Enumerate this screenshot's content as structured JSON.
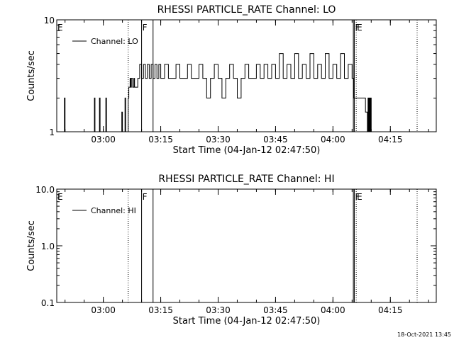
{
  "footer": {
    "timestamp": "18-Oct-2021 13:45"
  },
  "chart_data": [
    {
      "type": "line",
      "title": "RHESSI PARTICLE_RATE Channel: LO",
      "xlabel": "Start Time (04-Jan-12 02:47:50)",
      "ylabel": "Counts/sec",
      "xlim": [
        "02:47:50",
        "04:27:00"
      ],
      "ylim": [
        1,
        10
      ],
      "yscale": "log",
      "grid": false,
      "legend_position": "top-left",
      "x_tick_labels": [
        "03:00",
        "03:15",
        "03:30",
        "03:45",
        "04:00",
        "04:15"
      ],
      "y_tick_labels": [
        "1",
        "10"
      ],
      "markers": [
        {
          "label": "E",
          "time": "02:47:50",
          "style": "solid"
        },
        {
          "label": "",
          "time": "03:06:30",
          "style": "dotted"
        },
        {
          "label": "F",
          "time": "03:10:00",
          "style": "solid"
        },
        {
          "label": "",
          "time": "03:13:00",
          "style": "solid"
        },
        {
          "label": "",
          "time": "04:05:20",
          "style": "solid"
        },
        {
          "label": "F",
          "time": "04:05:35",
          "style": "solid"
        },
        {
          "label": "E",
          "time": "04:06:05",
          "style": "dotted"
        },
        {
          "label": "",
          "time": "04:22:00",
          "style": "dotted"
        }
      ],
      "series": [
        {
          "name": "Channel: LO",
          "x": [
            "02:49:40",
            "02:49:50",
            "02:50:00",
            "02:57:30",
            "02:57:40",
            "02:57:50",
            "02:58:50",
            "02:59:00",
            "02:59:10",
            "03:00:30",
            "03:00:40",
            "03:00:50",
            "03:04:40",
            "03:04:50",
            "03:05:00",
            "03:05:30",
            "03:05:40",
            "03:05:50",
            "03:06:30",
            "03:06:40",
            "03:07:00",
            "03:07:10",
            "03:07:20",
            "03:07:40",
            "03:08:00",
            "03:08:10",
            "03:09:00",
            "03:09:30",
            "03:10:00",
            "03:10:30",
            "03:11:00",
            "03:11:30",
            "03:12:00",
            "03:12:30",
            "03:13:00",
            "03:13:30",
            "03:14:00",
            "03:14:30",
            "03:15:00",
            "03:16:00",
            "03:17:00",
            "03:18:00",
            "03:19:00",
            "03:20:00",
            "03:21:00",
            "03:22:00",
            "03:23:00",
            "03:24:00",
            "03:25:00",
            "03:26:00",
            "03:27:00",
            "03:28:00",
            "03:29:00",
            "03:30:00",
            "03:31:00",
            "03:32:00",
            "03:33:00",
            "03:34:00",
            "03:35:00",
            "03:36:00",
            "03:37:00",
            "03:38:00",
            "03:39:00",
            "03:40:00",
            "03:41:00",
            "03:42:00",
            "03:43:00",
            "03:44:00",
            "03:45:00",
            "03:46:00",
            "03:47:00",
            "03:48:00",
            "03:49:00",
            "03:50:00",
            "03:51:00",
            "03:52:00",
            "03:53:00",
            "03:54:00",
            "03:55:00",
            "03:56:00",
            "03:57:00",
            "03:58:00",
            "03:59:00",
            "04:00:00",
            "04:01:00",
            "04:02:00",
            "04:03:00",
            "04:04:00",
            "04:05:00",
            "04:05:20",
            "04:05:30",
            "04:06:00",
            "04:07:00",
            "04:08:00",
            "04:08:30",
            "04:09:00",
            "04:09:10",
            "04:09:20",
            "04:09:30",
            "04:09:40",
            "04:09:50",
            "04:10:00"
          ],
          "values": [
            1,
            2,
            1,
            1,
            2,
            1,
            1,
            2,
            1,
            1,
            2,
            1,
            1,
            1.5,
            1,
            1,
            2,
            1,
            2,
            2.5,
            3,
            2.5,
            3,
            2.5,
            3,
            2.5,
            3,
            4,
            3,
            4,
            3,
            4,
            3,
            4,
            3,
            4,
            3,
            4,
            3,
            4,
            3,
            3,
            4,
            3,
            3,
            4,
            3,
            3,
            4,
            3,
            2,
            3,
            4,
            3,
            2,
            3,
            4,
            3,
            2,
            3,
            4,
            3,
            3,
            4,
            3,
            4,
            3,
            4,
            3,
            5,
            3,
            4,
            3,
            5,
            3,
            4,
            3,
            5,
            3,
            4,
            3,
            5,
            3,
            4,
            3,
            5,
            3,
            4,
            3,
            3,
            2,
            2,
            2,
            2,
            1.5,
            1,
            2,
            1,
            2,
            1,
            2,
            1
          ]
        }
      ]
    },
    {
      "type": "line",
      "title": "RHESSI PARTICLE_RATE Channel: HI",
      "xlabel": "Start Time (04-Jan-12 02:47:50)",
      "ylabel": "Counts/sec",
      "xlim": [
        "02:47:50",
        "04:27:00"
      ],
      "ylim": [
        0.1,
        10
      ],
      "yscale": "log",
      "grid": false,
      "legend_position": "top-left",
      "x_tick_labels": [
        "03:00",
        "03:15",
        "03:30",
        "03:45",
        "04:00",
        "04:15"
      ],
      "y_tick_labels": [
        "0.1",
        "1.0",
        "10.0"
      ],
      "markers": [
        {
          "label": "E",
          "time": "02:47:50",
          "style": "solid"
        },
        {
          "label": "",
          "time": "03:06:30",
          "style": "dotted"
        },
        {
          "label": "F",
          "time": "03:10:00",
          "style": "solid"
        },
        {
          "label": "",
          "time": "03:13:00",
          "style": "solid"
        },
        {
          "label": "",
          "time": "04:05:20",
          "style": "solid"
        },
        {
          "label": "F",
          "time": "04:05:35",
          "style": "solid"
        },
        {
          "label": "E",
          "time": "04:06:05",
          "style": "dotted"
        },
        {
          "label": "",
          "time": "04:22:00",
          "style": "dotted"
        }
      ],
      "series": [
        {
          "name": "Channel: HI",
          "x": [],
          "values": []
        }
      ]
    }
  ]
}
